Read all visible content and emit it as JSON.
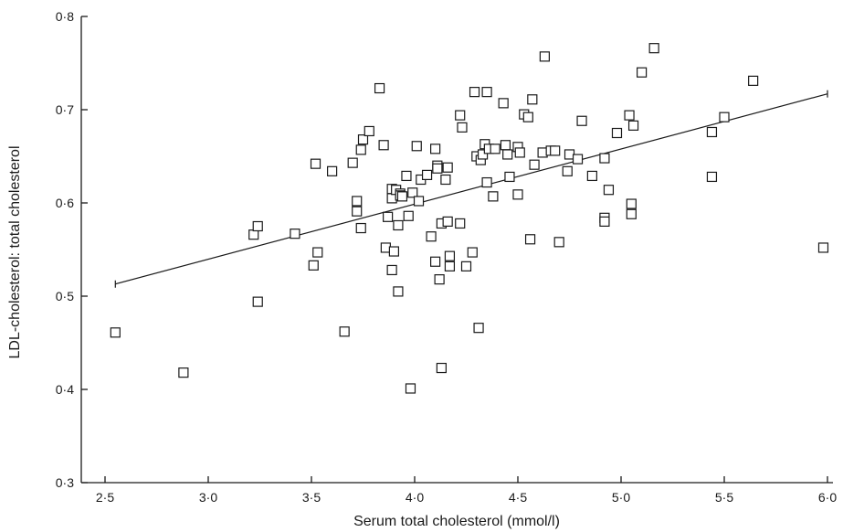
{
  "chart_data": {
    "type": "scatter",
    "xlabel": "Serum total cholesterol (mmol/l)",
    "ylabel": "LDL-cholesterol: total cholesterol",
    "xlim": [
      2.5,
      6.0
    ],
    "ylim": [
      0.3,
      0.8
    ],
    "x_ticks": [
      2.5,
      3.0,
      3.5,
      4.0,
      4.5,
      5.0,
      5.5,
      6.0
    ],
    "x_tick_labels": [
      "2·5",
      "3·0",
      "3·5",
      "4·0",
      "4·5",
      "5·0",
      "5·5",
      "6·0"
    ],
    "y_ticks": [
      0.3,
      0.4,
      0.5,
      0.6,
      0.7,
      0.8
    ],
    "y_tick_labels": [
      "0·3",
      "0·4",
      "0·5",
      "0·6",
      "0·7",
      "0·8"
    ],
    "grid": false,
    "points": [
      [
        2.55,
        0.461
      ],
      [
        2.88,
        0.418
      ],
      [
        3.22,
        0.566
      ],
      [
        3.24,
        0.575
      ],
      [
        3.24,
        0.494
      ],
      [
        3.42,
        0.567
      ],
      [
        3.51,
        0.533
      ],
      [
        3.52,
        0.642
      ],
      [
        3.53,
        0.547
      ],
      [
        3.6,
        0.634
      ],
      [
        3.66,
        0.462
      ],
      [
        3.7,
        0.643
      ],
      [
        3.72,
        0.602
      ],
      [
        3.72,
        0.591
      ],
      [
        3.74,
        0.657
      ],
      [
        3.74,
        0.573
      ],
      [
        3.75,
        0.668
      ],
      [
        3.78,
        0.677
      ],
      [
        3.83,
        0.723
      ],
      [
        3.85,
        0.662
      ],
      [
        3.86,
        0.552
      ],
      [
        3.87,
        0.585
      ],
      [
        3.89,
        0.528
      ],
      [
        3.89,
        0.605
      ],
      [
        3.89,
        0.615
      ],
      [
        3.9,
        0.548
      ],
      [
        3.91,
        0.614
      ],
      [
        3.92,
        0.576
      ],
      [
        3.92,
        0.505
      ],
      [
        3.93,
        0.61
      ],
      [
        3.93,
        0.608
      ],
      [
        3.94,
        0.607
      ],
      [
        3.96,
        0.629
      ],
      [
        3.97,
        0.586
      ],
      [
        3.98,
        0.401
      ],
      [
        3.99,
        0.611
      ],
      [
        4.01,
        0.661
      ],
      [
        4.02,
        0.602
      ],
      [
        4.03,
        0.625
      ],
      [
        4.06,
        0.63
      ],
      [
        4.08,
        0.564
      ],
      [
        4.1,
        0.658
      ],
      [
        4.1,
        0.537
      ],
      [
        4.11,
        0.64
      ],
      [
        4.11,
        0.637
      ],
      [
        4.12,
        0.518
      ],
      [
        4.13,
        0.578
      ],
      [
        4.13,
        0.423
      ],
      [
        4.15,
        0.625
      ],
      [
        4.16,
        0.638
      ],
      [
        4.16,
        0.58
      ],
      [
        4.17,
        0.543
      ],
      [
        4.17,
        0.532
      ],
      [
        4.22,
        0.694
      ],
      [
        4.22,
        0.578
      ],
      [
        4.23,
        0.681
      ],
      [
        4.25,
        0.532
      ],
      [
        4.28,
        0.547
      ],
      [
        4.29,
        0.719
      ],
      [
        4.3,
        0.65
      ],
      [
        4.31,
        0.466
      ],
      [
        4.32,
        0.646
      ],
      [
        4.33,
        0.652
      ],
      [
        4.34,
        0.663
      ],
      [
        4.35,
        0.719
      ],
      [
        4.35,
        0.622
      ],
      [
        4.36,
        0.658
      ],
      [
        4.38,
        0.607
      ],
      [
        4.39,
        0.658
      ],
      [
        4.43,
        0.707
      ],
      [
        4.44,
        0.662
      ],
      [
        4.45,
        0.652
      ],
      [
        4.46,
        0.628
      ],
      [
        4.5,
        0.66
      ],
      [
        4.5,
        0.609
      ],
      [
        4.51,
        0.654
      ],
      [
        4.53,
        0.695
      ],
      [
        4.55,
        0.692
      ],
      [
        4.56,
        0.561
      ],
      [
        4.57,
        0.711
      ],
      [
        4.58,
        0.641
      ],
      [
        4.62,
        0.654
      ],
      [
        4.63,
        0.757
      ],
      [
        4.66,
        0.656
      ],
      [
        4.68,
        0.656
      ],
      [
        4.7,
        0.558
      ],
      [
        4.74,
        0.634
      ],
      [
        4.75,
        0.652
      ],
      [
        4.79,
        0.647
      ],
      [
        4.81,
        0.688
      ],
      [
        4.86,
        0.629
      ],
      [
        4.92,
        0.648
      ],
      [
        4.92,
        0.584
      ],
      [
        4.92,
        0.58
      ],
      [
        4.94,
        0.614
      ],
      [
        4.98,
        0.675
      ],
      [
        5.04,
        0.694
      ],
      [
        5.05,
        0.599
      ],
      [
        5.05,
        0.588
      ],
      [
        5.06,
        0.683
      ],
      [
        5.1,
        0.74
      ],
      [
        5.16,
        0.766
      ],
      [
        5.44,
        0.676
      ],
      [
        5.44,
        0.628
      ],
      [
        5.5,
        0.692
      ],
      [
        5.64,
        0.731
      ],
      [
        5.98,
        0.552
      ]
    ],
    "fit_line": {
      "x": [
        2.55,
        6.0
      ],
      "y": [
        0.513,
        0.717
      ]
    }
  }
}
